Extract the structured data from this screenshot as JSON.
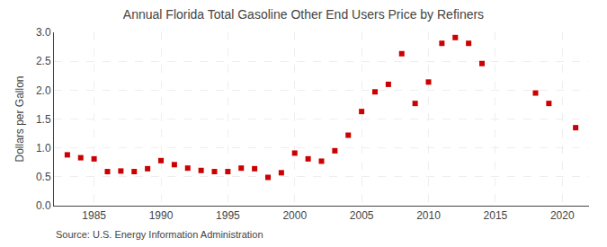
{
  "chart_data": {
    "type": "scatter",
    "title": "Annual Florida Total Gasoline Other End Users Price by Refiners",
    "ylabel": "Dollars per Gallon",
    "annotations": [
      "Source: U.S. Energy Information Administration"
    ],
    "x": [
      1983,
      1984,
      1985,
      1986,
      1987,
      1988,
      1989,
      1990,
      1991,
      1992,
      1993,
      1994,
      1995,
      1996,
      1997,
      1998,
      1999,
      2000,
      2001,
      2002,
      2003,
      2004,
      2005,
      2006,
      2007,
      2008,
      2009,
      2010,
      2011,
      2012,
      2013,
      2014,
      2018,
      2019,
      2021
    ],
    "values": [
      0.88,
      0.83,
      0.81,
      0.59,
      0.6,
      0.59,
      0.64,
      0.78,
      0.71,
      0.65,
      0.61,
      0.59,
      0.59,
      0.65,
      0.64,
      0.49,
      0.57,
      0.91,
      0.81,
      0.77,
      0.95,
      1.22,
      1.63,
      1.97,
      2.1,
      2.63,
      1.77,
      2.14,
      2.81,
      2.91,
      2.81,
      2.46,
      1.95,
      1.77,
      1.35
    ],
    "color": "#cc0000",
    "marker": "square",
    "xlim": [
      1982,
      2022
    ],
    "xticks": [
      1985,
      1990,
      1995,
      2000,
      2005,
      2010,
      2015,
      2020
    ],
    "ylim": [
      0.0,
      3.0
    ],
    "yticks": [
      {
        "value": 0,
        "label": "0.0"
      },
      0.5,
      {
        "value": 1,
        "label": "1.0"
      },
      1.5,
      {
        "value": 2,
        "label": "2.0"
      },
      2.5,
      {
        "value": 3,
        "label": "3.0"
      }
    ],
    "grid": true
  }
}
